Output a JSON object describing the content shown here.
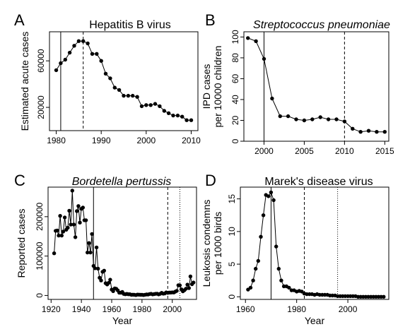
{
  "colors": {
    "line": "#000000",
    "point": "#000000",
    "axis": "#000000",
    "background": "#ffffff"
  },
  "chart_data": [
    {
      "panel_letter": "A",
      "type": "line",
      "title": "Hepatitis B virus",
      "title_italic": false,
      "xlabel": "",
      "ylabel": "Estimated acute cases",
      "xlim": [
        1978.5,
        2011.5
      ],
      "ylim": [
        0,
        85000
      ],
      "xticks": [
        1980,
        1990,
        2000,
        2010
      ],
      "xtick_labels": [
        "1980",
        "1990",
        "2000",
        "2010"
      ],
      "yticks": [
        20000,
        60000
      ],
      "ytick_labels": [
        "20000",
        "60000"
      ],
      "vlines": [
        {
          "x": 1981,
          "style": "solid"
        },
        {
          "x": 1986,
          "style": "dashed"
        }
      ],
      "x": [
        1980,
        1981,
        1982,
        1983,
        1984,
        1985,
        1986,
        1987,
        1988,
        1989,
        1990,
        1991,
        1992,
        1993,
        1994,
        1995,
        1996,
        1997,
        1998,
        1999,
        2000,
        2001,
        2002,
        2003,
        2004,
        2005,
        2006,
        2007,
        2008,
        2009,
        2010
      ],
      "y": [
        52000,
        58000,
        61000,
        67000,
        73000,
        77000,
        77000,
        75000,
        66000,
        66000,
        60000,
        49000,
        45000,
        37000,
        35000,
        30000,
        30000,
        30000,
        29000,
        21000,
        22000,
        22000,
        23000,
        21000,
        17000,
        15000,
        13000,
        13000,
        12000,
        9000,
        9000
      ]
    },
    {
      "panel_letter": "B",
      "type": "line",
      "title": "Streptococcus pneumoniae",
      "title_italic": true,
      "xlabel": "",
      "ylabel": [
        "IPD cases",
        "per 10000 children"
      ],
      "xlim": [
        1997.5,
        2015.5
      ],
      "ylim": [
        0,
        105
      ],
      "xticks": [
        2000,
        2005,
        2010,
        2015
      ],
      "xtick_labels": [
        "2000",
        "2005",
        "2010",
        "2015"
      ],
      "yticks": [
        0,
        20,
        40,
        60,
        80,
        100
      ],
      "ytick_labels": [
        "0",
        "20",
        "40",
        "60",
        "80",
        "100"
      ],
      "vlines": [
        {
          "x": 2000,
          "style": "solid"
        },
        {
          "x": 2010,
          "style": "dashed"
        }
      ],
      "x": [
        1998,
        1999,
        2000,
        2001,
        2002,
        2003,
        2004,
        2005,
        2006,
        2007,
        2008,
        2009,
        2010,
        2011,
        2012,
        2013,
        2014,
        2015
      ],
      "y": [
        99,
        96,
        79,
        41,
        24,
        24,
        21,
        20,
        21,
        23,
        21,
        21,
        19,
        12,
        9,
        10,
        9,
        9
      ]
    },
    {
      "panel_letter": "C",
      "type": "line",
      "title": "Bordetella pertussis",
      "title_italic": true,
      "xlabel": "Year",
      "ylabel": "Reported cases",
      "xlim": [
        1918,
        2016
      ],
      "ylim": [
        -10000,
        275000
      ],
      "xticks": [
        1920,
        1940,
        1960,
        1980,
        2000
      ],
      "xtick_labels": [
        "1920",
        "1940",
        "1960",
        "1980",
        "2000"
      ],
      "yticks": [
        0,
        100000,
        200000
      ],
      "ytick_labels": [
        "0",
        "100000",
        "200000"
      ],
      "vlines": [
        {
          "x": 1948,
          "style": "solid"
        },
        {
          "x": 1997,
          "style": "dashed"
        },
        {
          "x": 2005,
          "style": "dotted"
        }
      ],
      "x": [
        1922,
        1923,
        1924,
        1925,
        1926,
        1927,
        1928,
        1929,
        1930,
        1931,
        1932,
        1933,
        1934,
        1935,
        1936,
        1937,
        1938,
        1939,
        1940,
        1941,
        1942,
        1943,
        1944,
        1945,
        1946,
        1947,
        1948,
        1949,
        1950,
        1951,
        1952,
        1953,
        1954,
        1955,
        1956,
        1957,
        1958,
        1959,
        1960,
        1961,
        1962,
        1963,
        1964,
        1965,
        1966,
        1967,
        1968,
        1969,
        1970,
        1971,
        1972,
        1973,
        1974,
        1975,
        1976,
        1977,
        1978,
        1979,
        1980,
        1981,
        1982,
        1983,
        1984,
        1985,
        1986,
        1987,
        1988,
        1989,
        1990,
        1991,
        1992,
        1993,
        1994,
        1995,
        1996,
        1997,
        1998,
        1999,
        2000,
        2001,
        2002,
        2003,
        2004,
        2005,
        2006,
        2007,
        2008,
        2009,
        2010,
        2011,
        2012,
        2013,
        2014
      ],
      "y": [
        107000,
        164000,
        165000,
        152000,
        202000,
        152000,
        162000,
        198000,
        167000,
        172000,
        215000,
        180000,
        266000,
        180000,
        148000,
        214000,
        227000,
        185000,
        220000,
        223000,
        191000,
        191000,
        109000,
        133000,
        109000,
        156000,
        75000,
        69000,
        122000,
        68000,
        45000,
        38000,
        60000,
        63000,
        31000,
        28000,
        32000,
        40000,
        15000,
        11000,
        18000,
        17000,
        13000,
        7000,
        7000,
        9000,
        4000,
        3000,
        4000,
        3000,
        3000,
        1700,
        2000,
        1700,
        1000,
        2200,
        2000,
        1600,
        1700,
        1200,
        1900,
        2500,
        2300,
        3600,
        4100,
        2800,
        3400,
        4100,
        4500,
        2700,
        4100,
        6600,
        4600,
        5100,
        7800,
        6600,
        7400,
        7300,
        7800,
        7600,
        9800,
        11600,
        25800,
        25600,
        15600,
        10500,
        13300,
        17000,
        27500,
        18700,
        48300,
        28600,
        32900
      ]
    },
    {
      "panel_letter": "D",
      "type": "line",
      "title": "Marek's disease virus",
      "title_italic": false,
      "xlabel": "Year",
      "ylabel": [
        "Leukosis condemns",
        "per 1000 birds"
      ],
      "xlim": [
        1958,
        2016
      ],
      "ylim": [
        -0.4,
        16.8
      ],
      "xticks": [
        1960,
        1980,
        2000
      ],
      "xtick_labels": [
        "1960",
        "1980",
        "2000"
      ],
      "yticks": [
        0,
        5,
        10,
        15
      ],
      "ytick_labels": [
        "0",
        "5",
        "10",
        "15"
      ],
      "vlines": [
        {
          "x": 1970,
          "style": "solid"
        },
        {
          "x": 1983,
          "style": "dashed"
        },
        {
          "x": 1996,
          "style": "dotted"
        }
      ],
      "x": [
        1961,
        1962,
        1963,
        1964,
        1965,
        1966,
        1967,
        1968,
        1969,
        1970,
        1971,
        1972,
        1973,
        1974,
        1975,
        1976,
        1977,
        1978,
        1979,
        1980,
        1981,
        1982,
        1983,
        1984,
        1985,
        1986,
        1987,
        1988,
        1989,
        1990,
        1991,
        1992,
        1993,
        1994,
        1995,
        1996,
        1997,
        1998,
        1999,
        2000,
        2001,
        2002,
        2003,
        2004,
        2005,
        2006,
        2007,
        2008,
        2009,
        2010,
        2011,
        2012,
        2013,
        2014
      ],
      "y": [
        1.1,
        1.4,
        2.5,
        4.3,
        5.5,
        9.2,
        12.5,
        15.6,
        15.4,
        16.0,
        14.8,
        7.7,
        4.3,
        2.5,
        1.6,
        1.6,
        1.4,
        1.0,
        1.0,
        0.8,
        0.9,
        0.8,
        0.5,
        0.4,
        0.4,
        0.4,
        0.3,
        0.4,
        0.3,
        0.3,
        0.3,
        0.3,
        0.2,
        0.2,
        0.2,
        0.1,
        0.1,
        0.1,
        0.1,
        0.1,
        0.1,
        0.1,
        0.1,
        0.0,
        0.0,
        0.0,
        0.0,
        0.0,
        0.0,
        0.0,
        0.0,
        0.0,
        0.0,
        0.0
      ]
    }
  ]
}
